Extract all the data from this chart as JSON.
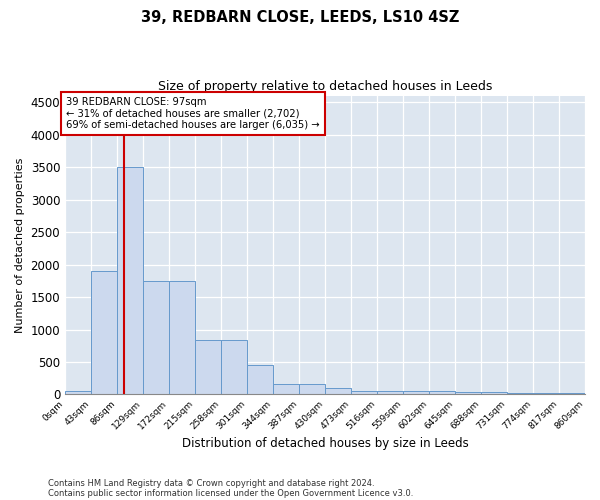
{
  "title1": "39, REDBARN CLOSE, LEEDS, LS10 4SZ",
  "title2": "Size of property relative to detached houses in Leeds",
  "xlabel": "Distribution of detached houses by size in Leeds",
  "ylabel": "Number of detached properties",
  "bin_labels": [
    "0sqm",
    "43sqm",
    "86sqm",
    "129sqm",
    "172sqm",
    "215sqm",
    "258sqm",
    "301sqm",
    "344sqm",
    "387sqm",
    "430sqm",
    "473sqm",
    "516sqm",
    "559sqm",
    "602sqm",
    "645sqm",
    "688sqm",
    "731sqm",
    "774sqm",
    "817sqm",
    "860sqm"
  ],
  "bar_values": [
    50,
    1900,
    3500,
    1750,
    1750,
    840,
    840,
    460,
    160,
    160,
    100,
    60,
    60,
    55,
    50,
    40,
    35,
    30,
    25,
    20,
    0
  ],
  "bar_color": "#ccd9ee",
  "bar_edge_color": "#6699cc",
  "vline_x": 97,
  "bin_width": 43,
  "ylim": [
    0,
    4600
  ],
  "yticks": [
    0,
    500,
    1000,
    1500,
    2000,
    2500,
    3000,
    3500,
    4000,
    4500
  ],
  "annotation_text": "39 REDBARN CLOSE: 97sqm\n← 31% of detached houses are smaller (2,702)\n69% of semi-detached houses are larger (6,035) →",
  "annotation_box_color": "#ffffff",
  "annotation_box_edge_color": "#cc0000",
  "footer1": "Contains HM Land Registry data © Crown copyright and database right 2024.",
  "footer2": "Contains public sector information licensed under the Open Government Licence v3.0.",
  "vline_color": "#cc0000",
  "background_color": "#dde6f0",
  "grid_color": "#b0bfd0"
}
